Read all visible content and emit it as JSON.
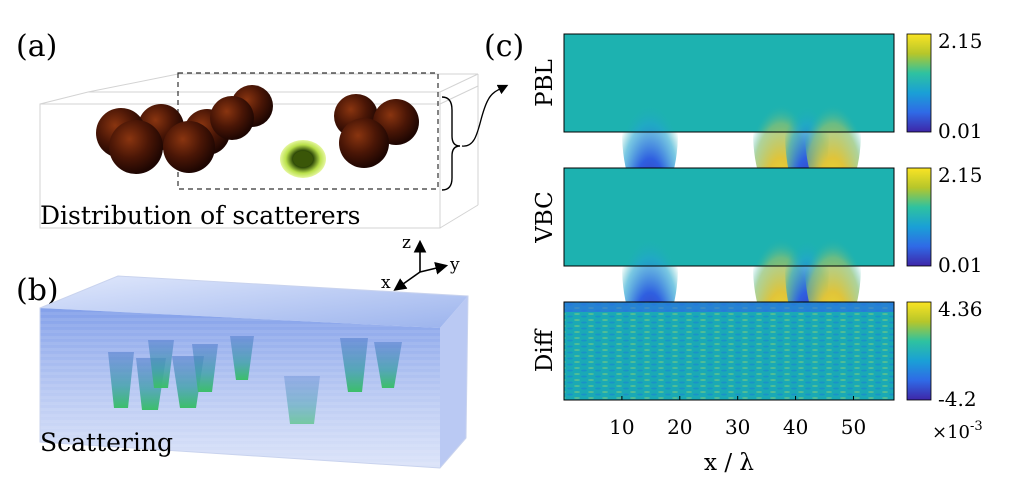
{
  "panels": {
    "a": {
      "label": "(a)",
      "caption": "Distribution of scatterers"
    },
    "b": {
      "label": "(b)",
      "caption": "Scattering"
    },
    "c": {
      "label": "(c)"
    }
  },
  "axes3d": {
    "z": "z",
    "y": "y",
    "x": "x"
  },
  "heatmaps": [
    {
      "row_label": "PBL",
      "cbar_max": "2.15",
      "cbar_min": "0.01"
    },
    {
      "row_label": "VBC",
      "cbar_max": "2.15",
      "cbar_min": "0.01"
    },
    {
      "row_label": "Diff",
      "cbar_max": "4.36",
      "cbar_min": "-4.2",
      "cbar_exp_base": "×10",
      "cbar_exp": "-3"
    }
  ],
  "x_axis": {
    "label": "x / λ",
    "ticks": [
      10,
      20,
      30,
      40,
      50
    ],
    "range": [
      0,
      57
    ]
  },
  "colors": {
    "sphere_dark": "#2a0a03",
    "sphere_mid": "#7a2a0c",
    "highlight": "#a6d23a",
    "volume_blue": "#7f9fe8",
    "field_bg": "#1db2b0"
  },
  "chart_data": [
    {
      "type": "heatmap",
      "title": "PBL",
      "xlabel": "x / λ",
      "xlim": [
        0,
        57
      ],
      "clim": [
        0.01,
        2.15
      ],
      "features": [
        {
          "kind": "low",
          "x": 15
        },
        {
          "kind": "high",
          "x": 37.5
        },
        {
          "kind": "low",
          "x": 42
        },
        {
          "kind": "high",
          "x": 47
        }
      ]
    },
    {
      "type": "heatmap",
      "title": "VBC",
      "xlabel": "x / λ",
      "xlim": [
        0,
        57
      ],
      "clim": [
        0.01,
        2.15
      ],
      "features": [
        {
          "kind": "low",
          "x": 15
        },
        {
          "kind": "high",
          "x": 37.5
        },
        {
          "kind": "low",
          "x": 42
        },
        {
          "kind": "high",
          "x": 47
        }
      ]
    },
    {
      "type": "heatmap",
      "title": "Diff",
      "xlabel": "x / λ",
      "xlim": [
        0,
        57
      ],
      "clim": [
        -0.0042,
        0.00436
      ]
    }
  ]
}
